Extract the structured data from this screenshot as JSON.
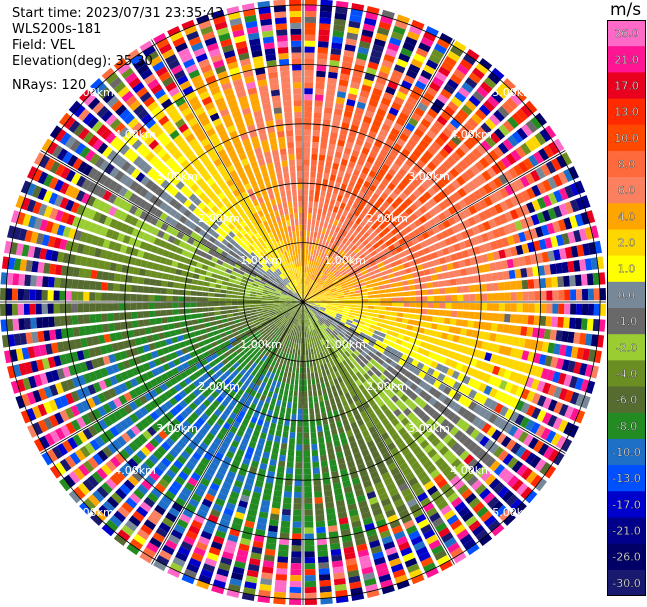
{
  "info": {
    "start_time": "Start time: 2023/07/31 23:35:43",
    "instrument": "WLS200s-181",
    "field": "Field: VEL",
    "elevation": "Elevation(deg): 35.30",
    "nrays": "NRays: 120"
  },
  "chart_data": {
    "type": "heatmap",
    "subtype": "ppi-polar",
    "field": "VEL",
    "nrays": 120,
    "range_rings_km": [
      1.0,
      2.0,
      3.0,
      4.0,
      5.0
    ],
    "ring_labels": [
      "1.00km",
      "2.00km",
      "3.00km",
      "4.00km",
      "5.00km"
    ],
    "max_range_km": 5.1,
    "colorbar": {
      "unit": "m/s",
      "tick_labels": [
        "26.0",
        "21.0",
        "17.0",
        "13.0",
        "10.0",
        "8.0",
        "6.0",
        "4.0",
        "2.0",
        "1.0",
        "0.0",
        "-1.0",
        "-2.0",
        "-4.0",
        "-6.0",
        "-8.0",
        "-10.0",
        "-13.0",
        "-17.0",
        "-21.0",
        "-26.0",
        "-30.0"
      ],
      "bins": [
        {
          "min": 26,
          "max": 30,
          "color": "#ff69c8"
        },
        {
          "min": 21,
          "max": 26,
          "color": "#ff1493"
        },
        {
          "min": 17,
          "max": 21,
          "color": "#e8001e"
        },
        {
          "min": 13,
          "max": 17,
          "color": "#ff2a00"
        },
        {
          "min": 10,
          "max": 13,
          "color": "#ff4800"
        },
        {
          "min": 8,
          "max": 10,
          "color": "#ff6a3d"
        },
        {
          "min": 6,
          "max": 8,
          "color": "#fa8060"
        },
        {
          "min": 4,
          "max": 6,
          "color": "#ffa500"
        },
        {
          "min": 2,
          "max": 4,
          "color": "#ffd700"
        },
        {
          "min": 1,
          "max": 2,
          "color": "#ffff00"
        },
        {
          "min": 0,
          "max": 1,
          "color": "#778899"
        },
        {
          "min": -1,
          "max": 0,
          "color": "#696969"
        },
        {
          "min": -2,
          "max": -1,
          "color": "#9acd32"
        },
        {
          "min": -4,
          "max": -2,
          "color": "#6b8e23"
        },
        {
          "min": -6,
          "max": -4,
          "color": "#556b2f"
        },
        {
          "min": -8,
          "max": -6,
          "color": "#228b22"
        },
        {
          "min": -10,
          "max": -8,
          "color": "#1e6fc8"
        },
        {
          "min": -13,
          "max": -10,
          "color": "#0050ff"
        },
        {
          "min": -17,
          "max": -13,
          "color": "#0000cd"
        },
        {
          "min": -21,
          "max": -17,
          "color": "#00008b"
        },
        {
          "min": -26,
          "max": -21,
          "color": "#000066"
        },
        {
          "min": -30,
          "max": -26,
          "color": "#191970"
        }
      ]
    },
    "pattern": {
      "description": "Dipole radial velocity: positive (receding, 4-10 m/s) toward north-east, negative (approaching, -2 to -10 m/s) toward south-west; noisy outer gates beyond ~4.2 km",
      "max_positive_ms": 10.0,
      "max_negative_ms": -9.0,
      "positive_azimuth_deg": 35,
      "clean_range_km": 4.2
    }
  }
}
